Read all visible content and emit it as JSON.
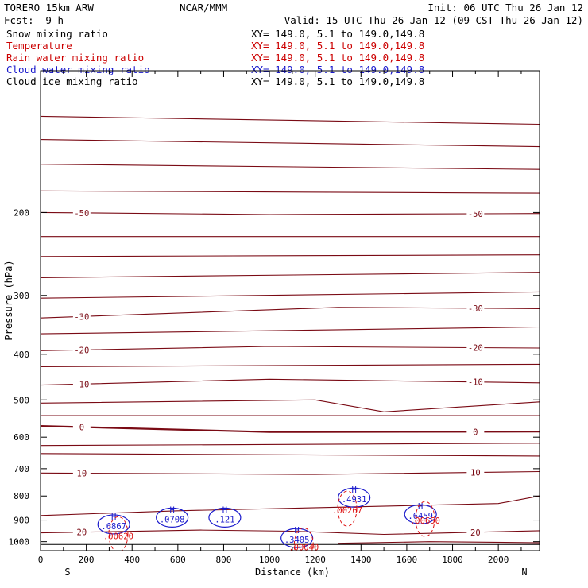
{
  "header": {
    "model": "TORERO  15km ARW",
    "center": "NCAR/MMM",
    "init": "Init: 06 UTC Thu 26 Jan 12",
    "fcst_label": "Fcst:",
    "fcst_value": "9 h",
    "valid": "Valid: 15 UTC Thu 26 Jan 12 (09 CST Thu 26 Jan 12)"
  },
  "legend": [
    {
      "name": "Snow mixing ratio",
      "xy": "XY= 149.0,  5.1 to 149.0,149.8",
      "color": "#000000"
    },
    {
      "name": "Temperature",
      "xy": "XY= 149.0,  5.1 to 149.0,149.8",
      "color": "#cc0000"
    },
    {
      "name": "Rain water mixing ratio",
      "xy": "XY= 149.0,  5.1 to 149.0,149.8",
      "color": "#cc0000"
    },
    {
      "name": "Cloud water mixing ratio",
      "xy": "XY= 149.0,  5.1 to 149.0,149.8",
      "color": "#1a1acc"
    },
    {
      "name": "Cloud ice mixing ratio",
      "xy": "XY= 149.0,  5.1 to 149.0,149.8",
      "color": "#000000"
    }
  ],
  "colors": {
    "temperature": "#7a0a14",
    "rain": "#dd1111",
    "cloud_water": "#1a1acc",
    "ground": "#000000"
  },
  "chart_data": {
    "type": "line",
    "xlabel": "Distance (km)",
    "ylabel": "Pressure (hPa)",
    "xlim": [
      0,
      2180
    ],
    "ylim": [
      1045,
      100
    ],
    "x_ticks": [
      0,
      200,
      400,
      600,
      800,
      1000,
      1200,
      1400,
      1600,
      1800,
      2000
    ],
    "y_ticks": [
      200,
      300,
      400,
      500,
      600,
      700,
      800,
      900,
      1000
    ],
    "y_scale": "log",
    "direction_labels": {
      "left": "S",
      "right": "N"
    },
    "ground_level_hPa": 1012,
    "temperature_isotherms": [
      {
        "label": "",
        "points": [
          [
            0,
            125
          ],
          [
            2180,
            130
          ]
        ]
      },
      {
        "label": "",
        "points": [
          [
            0,
            140
          ],
          [
            2180,
            145
          ]
        ]
      },
      {
        "label": "",
        "points": [
          [
            0,
            158
          ],
          [
            2180,
            162
          ]
        ]
      },
      {
        "label": "",
        "points": [
          [
            0,
            180
          ],
          [
            2180,
            182
          ]
        ]
      },
      {
        "label": "-50",
        "points": [
          [
            0,
            200
          ],
          [
            1000,
            202
          ],
          [
            2180,
            201
          ]
        ]
      },
      {
        "label": "",
        "points": [
          [
            0,
            225
          ],
          [
            2180,
            225
          ]
        ]
      },
      {
        "label": "",
        "points": [
          [
            0,
            248
          ],
          [
            2180,
            246
          ]
        ]
      },
      {
        "label": "",
        "points": [
          [
            0,
            275
          ],
          [
            2180,
            268
          ]
        ]
      },
      {
        "label": "",
        "points": [
          [
            0,
            304
          ],
          [
            2180,
            295
          ]
        ]
      },
      {
        "label": "-30",
        "points": [
          [
            0,
            335
          ],
          [
            1300,
            318
          ],
          [
            2180,
            320
          ]
        ]
      },
      {
        "label": "",
        "points": [
          [
            0,
            362
          ],
          [
            2180,
            350
          ]
        ]
      },
      {
        "label": "-20",
        "points": [
          [
            0,
            393
          ],
          [
            1000,
            385
          ],
          [
            2180,
            388
          ]
        ]
      },
      {
        "label": "",
        "points": [
          [
            0,
            425
          ],
          [
            2180,
            420
          ]
        ]
      },
      {
        "label": "-10",
        "points": [
          [
            0,
            465
          ],
          [
            1000,
            452
          ],
          [
            2180,
            460
          ]
        ]
      },
      {
        "label": "",
        "points": [
          [
            0,
            508
          ],
          [
            1200,
            500
          ],
          [
            1500,
            530
          ],
          [
            2180,
            505
          ]
        ]
      },
      {
        "label": "",
        "points": [
          [
            0,
            540
          ],
          [
            2180,
            540
          ]
        ]
      },
      {
        "label": "0",
        "points": [
          [
            0,
            568
          ],
          [
            1000,
            585
          ],
          [
            2180,
            584
          ]
        ]
      },
      {
        "label": "",
        "points": [
          [
            0,
            625
          ],
          [
            2180,
            618
          ]
        ]
      },
      {
        "label": "",
        "points": [
          [
            0,
            650
          ],
          [
            2180,
            658
          ]
        ]
      },
      {
        "label": "10",
        "points": [
          [
            0,
            715
          ],
          [
            1200,
            720
          ],
          [
            2180,
            710
          ]
        ]
      },
      {
        "label": "",
        "points": [
          [
            0,
            880
          ],
          [
            600,
            860
          ],
          [
            1300,
            845
          ],
          [
            2000,
            830
          ],
          [
            2180,
            800
          ]
        ]
      },
      {
        "label": "20",
        "points": [
          [
            0,
            958
          ],
          [
            700,
            945
          ],
          [
            1100,
            950
          ],
          [
            1500,
            965
          ],
          [
            2180,
            948
          ]
        ]
      },
      {
        "label": "",
        "points": [
          [
            1300,
            1008
          ],
          [
            1700,
            1000
          ],
          [
            2180,
            1005
          ]
        ]
      }
    ],
    "rain_water_maxima": [
      {
        "x": 340,
        "p": 935,
        "value": ".00620"
      },
      {
        "x": 1150,
        "p": 987,
        "value": ".00040"
      },
      {
        "x": 1340,
        "p": 825,
        "value": ".00267"
      },
      {
        "x": 1680,
        "p": 868,
        "value": ".00650"
      }
    ],
    "cloud_water_maxima": [
      {
        "x": 320,
        "p": 912,
        "value": ".6867"
      },
      {
        "x": 575,
        "p": 882,
        "value": ".0708"
      },
      {
        "x": 805,
        "p": 882,
        "value": ".121"
      },
      {
        "x": 1120,
        "p": 975,
        "value": ".3405"
      },
      {
        "x": 1370,
        "p": 800,
        "value": ".4931"
      },
      {
        "x": 1660,
        "p": 868,
        "value": ".6459"
      }
    ]
  }
}
